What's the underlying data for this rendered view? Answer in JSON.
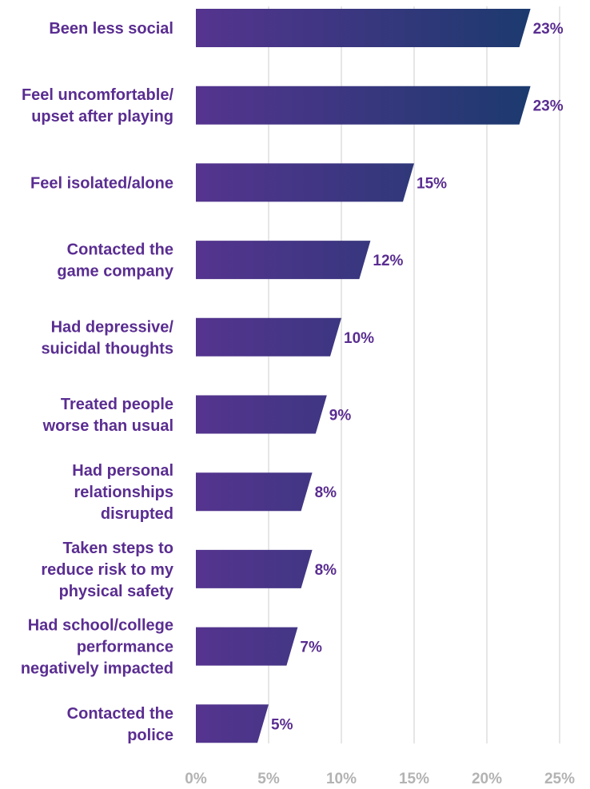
{
  "chart_data": {
    "type": "bar",
    "orientation": "horizontal",
    "categories": [
      "Been less social",
      "Feel uncomfortable/ upset after playing",
      "Feel isolated/alone",
      "Contacted the game company",
      "Had depressive/ suicidal thoughts",
      "Treated people worse than usual",
      "Had personal relationships disrupted",
      "Taken steps to reduce risk to my physical safety",
      "Had school/college performance negatively impacted",
      "Contacted the police"
    ],
    "category_lines": [
      [
        "Been less social"
      ],
      [
        "Feel uncomfortable/",
        "upset after playing"
      ],
      [
        "Feel isolated/alone"
      ],
      [
        "Contacted the",
        "game company"
      ],
      [
        "Had depressive/",
        "suicidal thoughts"
      ],
      [
        "Treated people",
        "worse than usual"
      ],
      [
        "Had personal",
        "relationships",
        "disrupted"
      ],
      [
        "Taken steps to",
        "reduce risk to my",
        "physical safety"
      ],
      [
        "Had school/college",
        "performance",
        "negatively impacted"
      ],
      [
        "Contacted the",
        "police"
      ]
    ],
    "values": [
      23,
      23,
      15,
      12,
      10,
      9,
      8,
      8,
      7,
      5
    ],
    "value_labels": [
      "23%",
      "23%",
      "15%",
      "12%",
      "10%",
      "9%",
      "8%",
      "8%",
      "7%",
      "5%"
    ],
    "x_ticks": [
      0,
      5,
      10,
      15,
      20,
      25
    ],
    "x_tick_labels": [
      "0%",
      "5%",
      "10%",
      "15%",
      "20%",
      "25%"
    ],
    "xlim": [
      0,
      25
    ],
    "grid": true,
    "legend": "none",
    "title": "",
    "xlabel": "",
    "ylabel": "",
    "colors": {
      "bar_gradient_start": "#55348f",
      "bar_gradient_end": "#1b3a6e",
      "category_text": "#5a2d91",
      "value_text": "#5a2d91",
      "tick_text": "#b3b3b3",
      "gridline": "#d6d6d6"
    }
  }
}
